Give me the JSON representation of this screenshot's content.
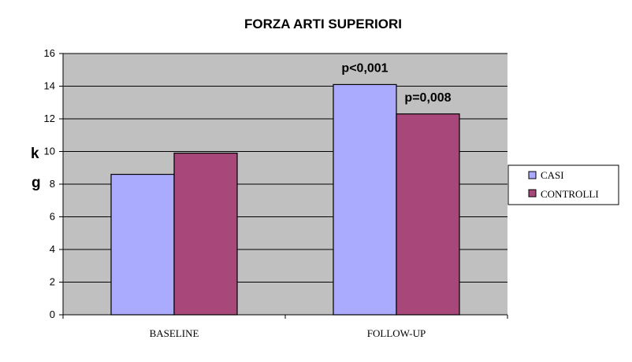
{
  "chart_data": {
    "type": "bar",
    "title": "FORZA ARTI SUPERIORI",
    "ylabel_lines": [
      "k",
      "g"
    ],
    "categories": [
      "BASELINE",
      "FOLLOW-UP"
    ],
    "series": [
      {
        "name": "CASI",
        "values": [
          8.6,
          14.1
        ],
        "color": "#aaaaff"
      },
      {
        "name": "CONTROLLI",
        "values": [
          9.9,
          12.3
        ],
        "color": "#a8477a"
      }
    ],
    "ylim": [
      0,
      16
    ],
    "yticks": [
      0,
      2,
      4,
      6,
      8,
      10,
      12,
      14,
      16
    ],
    "grid": true,
    "plot_background": "#c0c0c0",
    "legend_position": "right",
    "annotations": [
      {
        "text": "p<0,001",
        "category": "FOLLOW-UP",
        "series": "CASI"
      },
      {
        "text": "p=0,008",
        "category": "FOLLOW-UP",
        "series": "CONTROLLI"
      }
    ]
  }
}
